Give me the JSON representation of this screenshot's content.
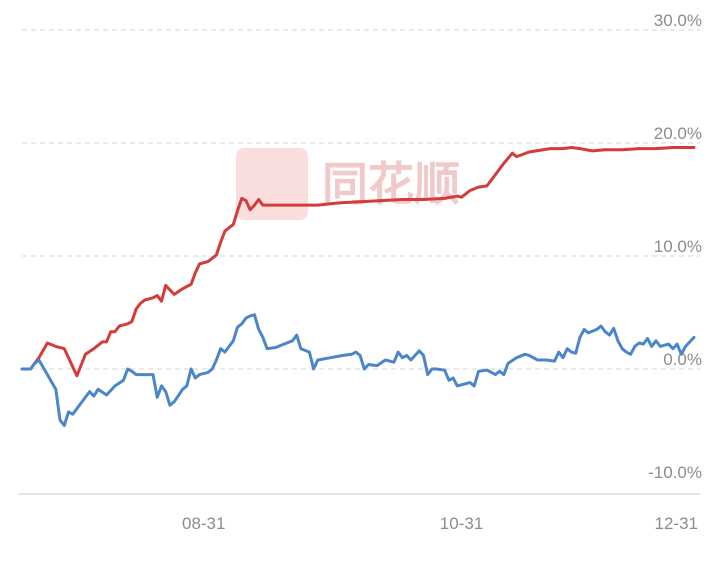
{
  "watermark": {
    "text": "同花顺",
    "color": "#e04848"
  },
  "chart_data": {
    "type": "line",
    "title": "",
    "xlabel": "",
    "ylabel": "",
    "ylim": [
      -10,
      30
    ],
    "y_ticks": [
      "30.0%",
      "20.0%",
      "10.0%",
      "0.0%",
      "-10.0%"
    ],
    "y_tick_values": [
      30,
      20,
      10,
      0,
      -10
    ],
    "x_range": [
      0,
      159
    ],
    "x_ticks": [
      {
        "label": "08-31",
        "x": 43
      },
      {
        "label": "10-31",
        "x": 104
      },
      {
        "label": "12-31",
        "x": 159
      }
    ],
    "grid": true,
    "series": [
      {
        "color": "#d43b3b",
        "values": [
          [
            0,
            0.0
          ],
          [
            2,
            0.0
          ],
          [
            4,
            1.0
          ],
          [
            6,
            2.3
          ],
          [
            8,
            2.0
          ],
          [
            10,
            1.8
          ],
          [
            12,
            0.2
          ],
          [
            13,
            -0.6
          ],
          [
            15,
            1.3
          ],
          [
            17,
            1.8
          ],
          [
            19,
            2.4
          ],
          [
            20,
            2.4
          ],
          [
            21,
            3.3
          ],
          [
            22,
            3.3
          ],
          [
            23,
            3.8
          ],
          [
            25,
            4.0
          ],
          [
            26,
            4.2
          ],
          [
            27,
            5.3
          ],
          [
            28,
            5.8
          ],
          [
            29,
            6.1
          ],
          [
            31,
            6.3
          ],
          [
            32,
            6.5
          ],
          [
            33,
            6.0
          ],
          [
            34,
            7.4
          ],
          [
            35,
            7.0
          ],
          [
            36,
            6.6
          ],
          [
            38,
            7.1
          ],
          [
            39,
            7.3
          ],
          [
            40,
            7.5
          ],
          [
            41,
            8.5
          ],
          [
            42,
            9.3
          ],
          [
            44,
            9.5
          ],
          [
            45,
            9.8
          ],
          [
            46,
            10.1
          ],
          [
            47,
            11.2
          ],
          [
            48,
            12.2
          ],
          [
            50,
            12.8
          ],
          [
            51,
            14.0
          ],
          [
            52,
            15.1
          ],
          [
            53,
            14.9
          ],
          [
            54,
            14.1
          ],
          [
            55,
            14.5
          ],
          [
            56,
            15.0
          ],
          [
            57,
            14.5
          ],
          [
            60,
            14.5
          ],
          [
            65,
            14.5
          ],
          [
            70,
            14.5
          ],
          [
            75,
            14.7
          ],
          [
            80,
            14.8
          ],
          [
            85,
            14.9
          ],
          [
            90,
            15.0
          ],
          [
            95,
            15.0
          ],
          [
            100,
            15.1
          ],
          [
            103,
            15.3
          ],
          [
            104,
            15.2
          ],
          [
            106,
            15.8
          ],
          [
            108,
            16.1
          ],
          [
            110,
            16.2
          ],
          [
            112,
            17.2
          ],
          [
            114,
            18.2
          ],
          [
            116,
            19.1
          ],
          [
            117,
            18.8
          ],
          [
            120,
            19.2
          ],
          [
            125,
            19.5
          ],
          [
            128,
            19.5
          ],
          [
            130,
            19.6
          ],
          [
            132,
            19.5
          ],
          [
            135,
            19.3
          ],
          [
            138,
            19.4
          ],
          [
            142,
            19.4
          ],
          [
            146,
            19.5
          ],
          [
            150,
            19.5
          ],
          [
            154,
            19.6
          ],
          [
            159,
            19.6
          ]
        ]
      },
      {
        "color": "#4a86c9",
        "values": [
          [
            0,
            0.0
          ],
          [
            2,
            0.0
          ],
          [
            3,
            0.5
          ],
          [
            4,
            0.8
          ],
          [
            6,
            -0.5
          ],
          [
            8,
            -1.8
          ],
          [
            9,
            -4.5
          ],
          [
            10,
            -5.0
          ],
          [
            11,
            -3.8
          ],
          [
            12,
            -4.0
          ],
          [
            14,
            -3.0
          ],
          [
            16,
            -2.0
          ],
          [
            17,
            -2.4
          ],
          [
            18,
            -1.8
          ],
          [
            20,
            -2.3
          ],
          [
            22,
            -1.5
          ],
          [
            24,
            -1.0
          ],
          [
            25,
            0.0
          ],
          [
            26,
            -0.2
          ],
          [
            27,
            -0.5
          ],
          [
            29,
            -0.5
          ],
          [
            31,
            -0.5
          ],
          [
            32,
            -2.5
          ],
          [
            33,
            -1.5
          ],
          [
            34,
            -2.0
          ],
          [
            35,
            -3.2
          ],
          [
            36,
            -2.9
          ],
          [
            38,
            -1.8
          ],
          [
            39,
            -1.5
          ],
          [
            40,
            0.0
          ],
          [
            41,
            -0.8
          ],
          [
            42,
            -0.5
          ],
          [
            44,
            -0.3
          ],
          [
            45,
            0.0
          ],
          [
            46,
            0.8
          ],
          [
            47,
            1.8
          ],
          [
            48,
            1.5
          ],
          [
            49,
            2.0
          ],
          [
            50,
            2.5
          ],
          [
            51,
            3.7
          ],
          [
            52,
            4.0
          ],
          [
            53,
            4.5
          ],
          [
            54,
            4.7
          ],
          [
            55,
            4.8
          ],
          [
            56,
            3.5
          ],
          [
            57,
            2.8
          ],
          [
            58,
            1.8
          ],
          [
            60,
            1.9
          ],
          [
            62,
            2.2
          ],
          [
            64,
            2.5
          ],
          [
            65,
            3.0
          ],
          [
            66,
            1.8
          ],
          [
            68,
            1.5
          ],
          [
            69,
            0.0
          ],
          [
            70,
            0.8
          ],
          [
            73,
            1.0
          ],
          [
            76,
            1.2
          ],
          [
            78,
            1.3
          ],
          [
            79,
            1.5
          ],
          [
            80,
            1.2
          ],
          [
            81,
            0.0
          ],
          [
            82,
            0.4
          ],
          [
            84,
            0.3
          ],
          [
            86,
            0.8
          ],
          [
            88,
            0.6
          ],
          [
            89,
            1.5
          ],
          [
            90,
            1.0
          ],
          [
            91,
            1.2
          ],
          [
            92,
            0.8
          ],
          [
            94,
            1.6
          ],
          [
            95,
            1.2
          ],
          [
            96,
            -0.5
          ],
          [
            97,
            0.0
          ],
          [
            98,
            0.0
          ],
          [
            100,
            -0.1
          ],
          [
            101,
            -1.0
          ],
          [
            102,
            -0.8
          ],
          [
            103,
            -1.5
          ],
          [
            104,
            -1.4
          ],
          [
            106,
            -1.2
          ],
          [
            107,
            -1.5
          ],
          [
            108,
            -0.2
          ],
          [
            110,
            -0.1
          ],
          [
            112,
            -0.5
          ],
          [
            113,
            -0.2
          ],
          [
            114,
            -0.5
          ],
          [
            115,
            0.5
          ],
          [
            117,
            1.0
          ],
          [
            119,
            1.3
          ],
          [
            120,
            1.2
          ],
          [
            122,
            0.8
          ],
          [
            124,
            0.8
          ],
          [
            126,
            0.7
          ],
          [
            127,
            1.5
          ],
          [
            128,
            1.0
          ],
          [
            129,
            1.8
          ],
          [
            130,
            1.5
          ],
          [
            131,
            1.4
          ],
          [
            132,
            2.8
          ],
          [
            133,
            3.5
          ],
          [
            134,
            3.2
          ],
          [
            136,
            3.5
          ],
          [
            137,
            3.8
          ],
          [
            138,
            3.3
          ],
          [
            139,
            3.0
          ],
          [
            140,
            3.6
          ],
          [
            141,
            2.5
          ],
          [
            142,
            1.8
          ],
          [
            143,
            1.5
          ],
          [
            144,
            1.3
          ],
          [
            145,
            2.0
          ],
          [
            146,
            2.3
          ],
          [
            147,
            2.2
          ],
          [
            148,
            2.7
          ],
          [
            149,
            2.0
          ],
          [
            150,
            2.5
          ],
          [
            151,
            2.0
          ],
          [
            153,
            2.2
          ],
          [
            154,
            1.8
          ],
          [
            155,
            2.2
          ],
          [
            156,
            1.3
          ],
          [
            157,
            2.0
          ],
          [
            159,
            2.8
          ]
        ]
      }
    ]
  }
}
